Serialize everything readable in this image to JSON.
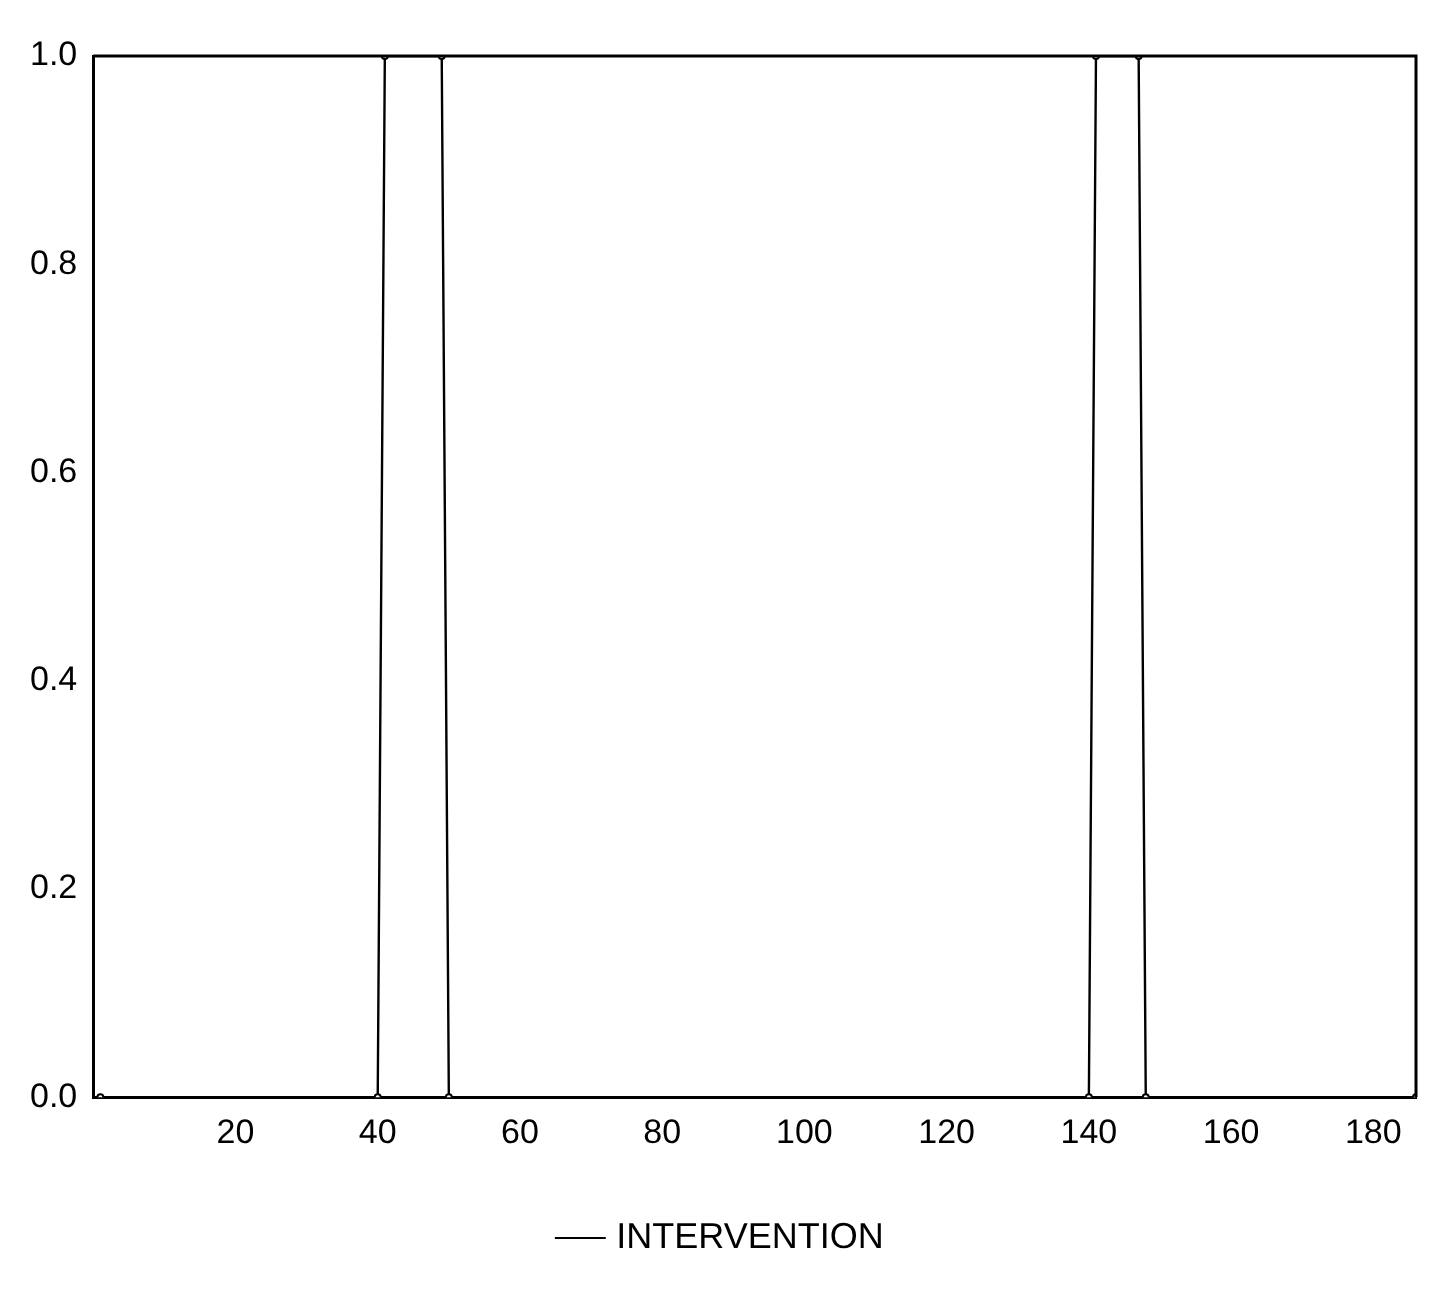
{
  "chart_data": {
    "type": "line",
    "x": [
      1,
      40,
      41,
      49,
      50,
      140,
      141,
      147,
      148,
      186
    ],
    "series": [
      {
        "name": "INTERVENTION",
        "color": "#000000",
        "values": [
          0,
          0,
          1,
          1,
          0,
          0,
          1,
          1,
          0,
          0
        ]
      }
    ],
    "xlim": [
      0,
      186
    ],
    "xticks": [
      20,
      40,
      60,
      80,
      100,
      120,
      140,
      160,
      180
    ],
    "ylim": [
      0,
      1
    ],
    "yticks": [
      {
        "value": 0,
        "label": "0.0"
      },
      {
        "value": 0.2,
        "label": "0.2"
      },
      {
        "value": 0.4,
        "label": "0.4"
      },
      {
        "value": 0.6,
        "label": "0.6"
      },
      {
        "value": 0.8,
        "label": "0.8"
      },
      {
        "value": 1,
        "label": "1.0"
      }
    ],
    "grid": false,
    "legend": "bottom",
    "marker": "circle",
    "line_style": "solid"
  }
}
